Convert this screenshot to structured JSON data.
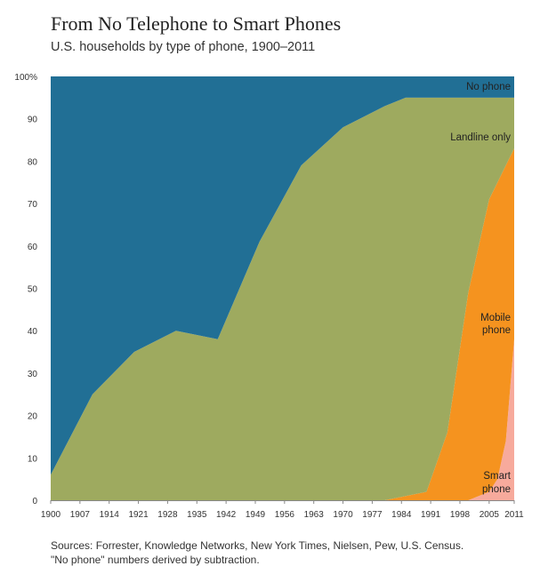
{
  "chart_data": {
    "type": "area",
    "stacked": true,
    "title": "From No Telephone to Smart Phones",
    "subtitle": "U.S. households by type of phone, 1900–2011",
    "xlabel": "",
    "ylabel": "",
    "xlim": [
      1900,
      2011
    ],
    "ylim": [
      0,
      100
    ],
    "x_ticks": [
      "1900",
      "1907",
      "1914",
      "1921",
      "1928",
      "1935",
      "1942",
      "1949",
      "1956",
      "1963",
      "1970",
      "1977",
      "1984",
      "1991",
      "1998",
      "2005",
      "2011"
    ],
    "y_ticks": [
      "0",
      "10",
      "20",
      "30",
      "40",
      "50",
      "60",
      "70",
      "80",
      "90",
      "100%"
    ],
    "grid": false,
    "x": [
      1900,
      1910,
      1920,
      1930,
      1940,
      1950,
      1960,
      1970,
      1980,
      1985,
      1990,
      1995,
      2000,
      2005,
      2007,
      2009,
      2011
    ],
    "series": [
      {
        "name": "Smart phone",
        "color": "#f7aa9c",
        "label_lines": [
          "Smart",
          "phone"
        ],
        "values": [
          0,
          0,
          0,
          0,
          0,
          0,
          0,
          0,
          0,
          0,
          0,
          0,
          0,
          2,
          5,
          14,
          38
        ]
      },
      {
        "name": "Mobile phone",
        "color": "#f5931f",
        "label_lines": [
          "Mobile",
          "phone"
        ],
        "values": [
          0,
          0,
          0,
          0,
          0,
          0,
          0,
          0,
          0,
          1,
          2,
          16,
          49,
          69,
          70,
          65,
          45
        ]
      },
      {
        "name": "Landline only",
        "color": "#9eaa5f",
        "label_lines": [
          "Landline only"
        ],
        "values": [
          6,
          25,
          35,
          40,
          38,
          61,
          79,
          88,
          93,
          94,
          93,
          79,
          46,
          24,
          20,
          16,
          12
        ]
      },
      {
        "name": "No phone",
        "color": "#216f95",
        "label_lines": [
          "No phone"
        ],
        "values": [
          94,
          75,
          65,
          60,
          62,
          39,
          21,
          12,
          7,
          5,
          5,
          5,
          5,
          5,
          5,
          5,
          5
        ]
      }
    ]
  },
  "sources": [
    "Sources: Forrester, Knowledge Networks, New York Times, Nielsen, Pew, U.S. Census.",
    "\"No phone\" numbers derived by subtraction."
  ]
}
